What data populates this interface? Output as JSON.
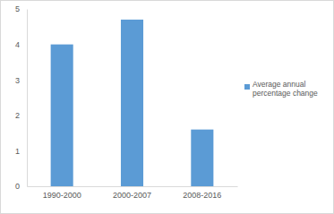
{
  "chart_data": {
    "type": "bar",
    "categories": [
      "1990-2000",
      "2000-2007",
      "2008-2016"
    ],
    "series": [
      {
        "name": "Average annual percentage change",
        "color": "#5b9bd5",
        "values": [
          4.0,
          4.7,
          1.6
        ]
      }
    ],
    "ylim": [
      0,
      5
    ],
    "yticks": [
      0,
      1,
      2,
      3,
      4,
      5
    ],
    "grid": false,
    "legend": "right"
  }
}
